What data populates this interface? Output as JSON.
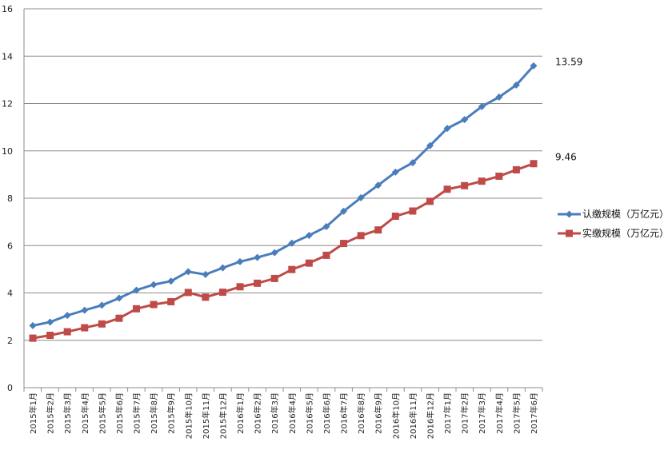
{
  "chart_data": {
    "type": "line",
    "title": "",
    "xlabel": "",
    "ylabel": "",
    "ylim": [
      0,
      16
    ],
    "yticks": [
      0,
      2,
      4,
      6,
      8,
      10,
      12,
      14,
      16
    ],
    "grid": true,
    "legend_position": "right",
    "categories": [
      "2015年1月",
      "2015年2月",
      "2015年3月",
      "2015年4月",
      "2015年5月",
      "2015年6月",
      "2015年7月",
      "2015年8月",
      "2015年9月",
      "2015年10月",
      "2015年11月",
      "2015年12月",
      "2016年1月",
      "2016年2月",
      "2016年3月",
      "2016年4月",
      "2016年5月",
      "2016年6月",
      "2016年7月",
      "2016年8月",
      "2016年9月",
      "2016年10月",
      "2016年11月",
      "2016年12月",
      "2017年1月",
      "2017年2月",
      "2017年3月",
      "2017年4月",
      "2017年5月",
      "2017年6月"
    ],
    "series": [
      {
        "name": "认缴规模（万亿元）",
        "color": "#4a7ebb",
        "marker": "diamond",
        "values": [
          2.62,
          2.77,
          3.05,
          3.27,
          3.48,
          3.78,
          4.12,
          4.35,
          4.5,
          4.9,
          4.78,
          5.06,
          5.32,
          5.5,
          5.7,
          6.1,
          6.43,
          6.8,
          7.45,
          8.02,
          8.55,
          9.1,
          9.5,
          10.22,
          10.95,
          11.32,
          11.87,
          12.27,
          12.78,
          13.59
        ],
        "end_label": "13.59"
      },
      {
        "name": "实缴规模（万亿元）",
        "color": "#be4b48",
        "marker": "square",
        "values": [
          2.09,
          2.21,
          2.36,
          2.53,
          2.69,
          2.93,
          3.33,
          3.51,
          3.63,
          4.02,
          3.82,
          4.03,
          4.26,
          4.41,
          4.61,
          4.99,
          5.26,
          5.59,
          6.09,
          6.42,
          6.66,
          7.24,
          7.46,
          7.87,
          8.38,
          8.53,
          8.72,
          8.93,
          9.2,
          9.46
        ],
        "end_label": "9.46"
      }
    ]
  }
}
